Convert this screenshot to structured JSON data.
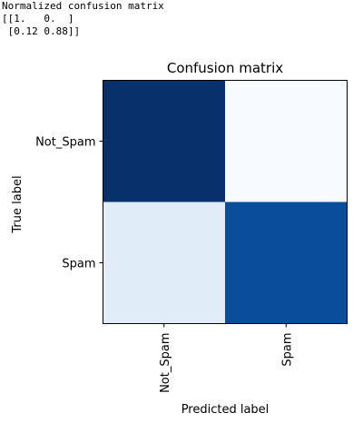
{
  "console": {
    "lines": [
      "Normalized confusion matrix",
      "[[1.   0.  ]",
      " [0.12 0.88]]"
    ]
  },
  "chart_data": {
    "type": "heatmap",
    "title": "Confusion matrix",
    "xlabel": "Predicted label",
    "ylabel": "True label",
    "x_categories": [
      "Not_Spam",
      "Spam"
    ],
    "y_categories": [
      "Not_Spam",
      "Spam"
    ],
    "values": [
      [
        1.0,
        0.0
      ],
      [
        0.12,
        0.88
      ]
    ],
    "colormap": "Blues",
    "grid": false,
    "legend": "none",
    "colors": {
      "cell_colors": [
        [
          "#08306b",
          "#f7fbff"
        ],
        [
          "#e0ecf8",
          "#084e9a"
        ]
      ],
      "frame": "#000000"
    }
  }
}
